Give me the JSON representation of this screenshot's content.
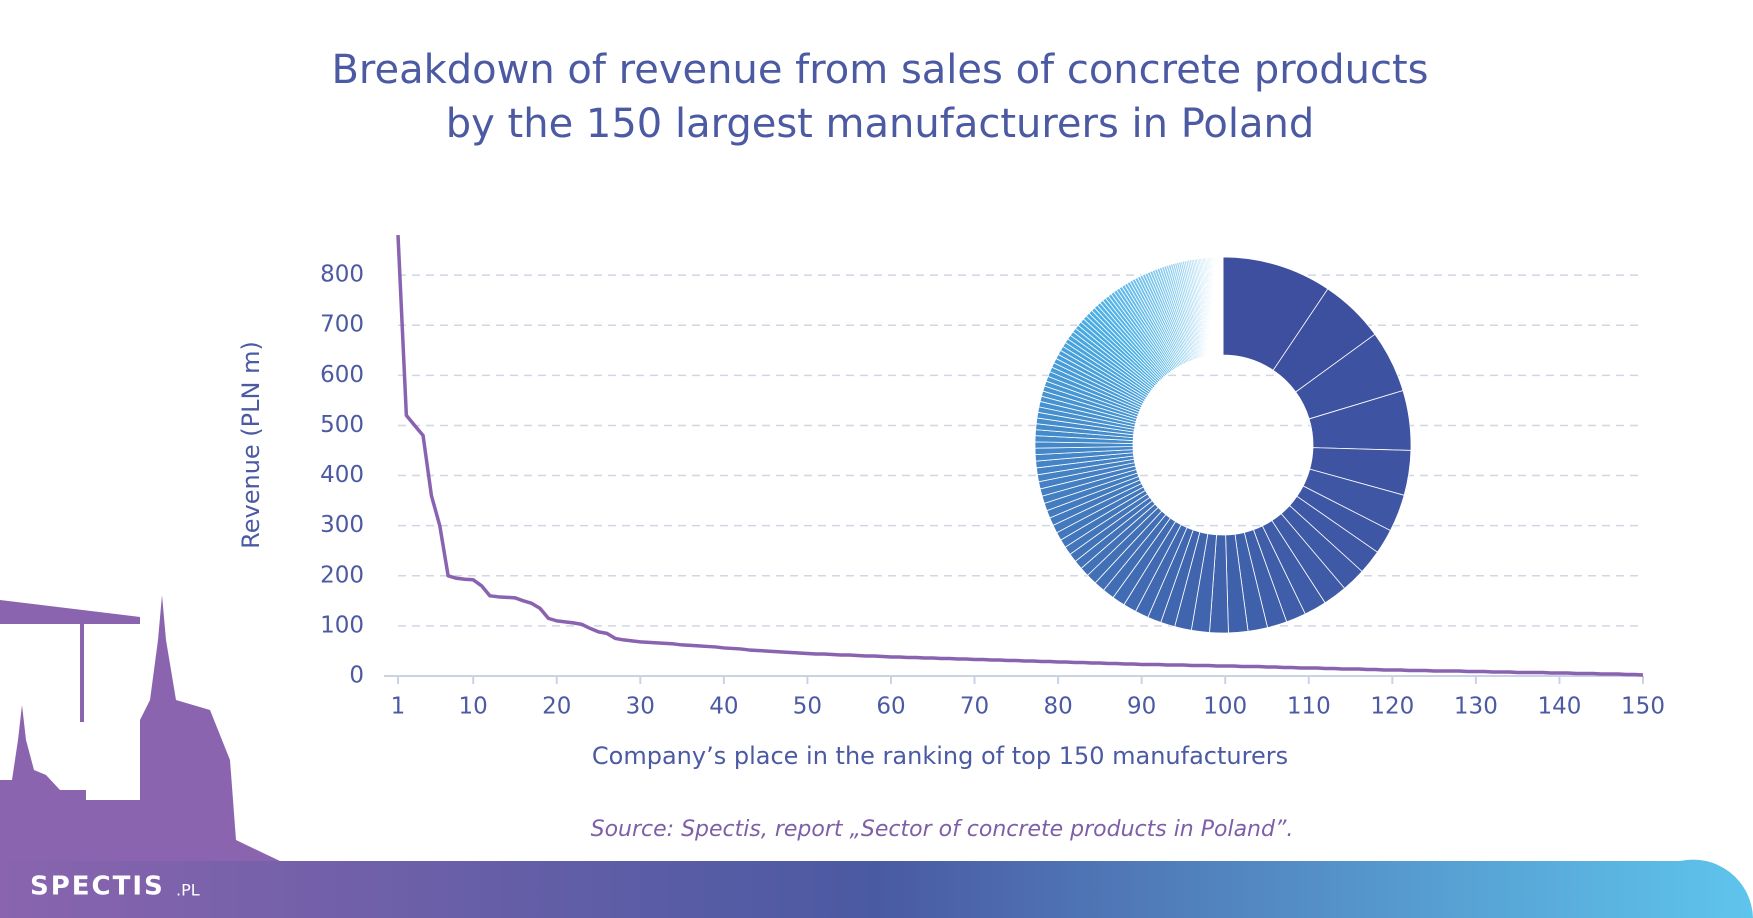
{
  "chart_data": {
    "type": "line",
    "title": [
      "Breakdown of revenue from sales of concrete products",
      "by the 150 largest manufacturers in Poland"
    ],
    "y_label": "Revenue (PLN m)",
    "x_label": "Company’s place in the ranking of top 150 manufacturers",
    "source": "Source: Spectis, report „Sector of concrete products in Poland”.",
    "logo": [
      "SPECTIS",
      ".PL"
    ],
    "x": [
      1,
      2,
      3,
      4,
      5,
      6,
      7,
      8,
      9,
      10,
      11,
      12,
      13,
      14,
      15,
      16,
      17,
      18,
      19,
      20,
      21,
      22,
      23,
      24,
      25,
      26,
      27,
      28,
      29,
      30,
      31,
      32,
      33,
      34,
      35,
      36,
      37,
      38,
      39,
      40,
      41,
      42,
      43,
      44,
      45,
      46,
      47,
      48,
      49,
      50,
      51,
      52,
      53,
      54,
      55,
      56,
      57,
      58,
      59,
      60,
      61,
      62,
      63,
      64,
      65,
      66,
      67,
      68,
      69,
      70,
      71,
      72,
      73,
      74,
      75,
      76,
      77,
      78,
      79,
      80,
      81,
      82,
      83,
      84,
      85,
      86,
      87,
      88,
      89,
      90,
      91,
      92,
      93,
      94,
      95,
      96,
      97,
      98,
      99,
      100,
      101,
      102,
      103,
      104,
      105,
      106,
      107,
      108,
      109,
      110,
      111,
      112,
      113,
      114,
      115,
      116,
      117,
      118,
      119,
      120,
      121,
      122,
      123,
      124,
      125,
      126,
      127,
      128,
      129,
      130,
      131,
      132,
      133,
      134,
      135,
      136,
      137,
      138,
      139,
      140,
      141,
      142,
      143,
      144,
      145,
      146,
      147,
      148,
      149,
      150
    ],
    "series": [
      {
        "name": "Revenue",
        "color": "#8a63b0",
        "values": [
          880,
          520,
          500,
          480,
          360,
          300,
          200,
          195,
          193,
          192,
          180,
          160,
          158,
          157,
          156,
          150,
          145,
          135,
          115,
          110,
          108,
          106,
          103,
          95,
          88,
          85,
          75,
          72,
          70,
          68,
          67,
          66,
          65,
          64,
          62,
          61,
          60,
          59,
          58,
          56,
          55,
          54,
          52,
          51,
          50,
          49,
          48,
          47,
          46,
          45,
          44,
          44,
          43,
          42,
          42,
          41,
          40,
          40,
          39,
          38,
          38,
          37,
          37,
          36,
          36,
          35,
          35,
          34,
          34,
          33,
          33,
          32,
          32,
          31,
          31,
          30,
          30,
          29,
          29,
          28,
          28,
          27,
          27,
          26,
          26,
          25,
          25,
          24,
          24,
          23,
          23,
          23,
          22,
          22,
          22,
          21,
          21,
          21,
          20,
          20,
          20,
          19,
          19,
          19,
          18,
          18,
          17,
          17,
          16,
          16,
          16,
          15,
          15,
          14,
          14,
          14,
          13,
          13,
          12,
          12,
          12,
          11,
          11,
          11,
          10,
          10,
          10,
          10,
          9,
          9,
          9,
          8,
          8,
          8,
          7,
          7,
          7,
          7,
          6,
          6,
          6,
          5,
          5,
          5,
          4,
          4,
          4,
          3,
          3,
          2
        ]
      }
    ],
    "xlim": [
      1,
      150
    ],
    "xticks": [
      1,
      10,
      20,
      30,
      40,
      50,
      60,
      70,
      80,
      90,
      100,
      110,
      120,
      130,
      140,
      150
    ],
    "ylim": [
      0,
      900
    ],
    "yticks": [
      0,
      100,
      200,
      300,
      400,
      500,
      600,
      700,
      800
    ],
    "grid": true,
    "inset": {
      "type": "donut",
      "colors": [
        "#3d4f9e",
        "#4ab0e6",
        "#eef6fc"
      ]
    }
  }
}
